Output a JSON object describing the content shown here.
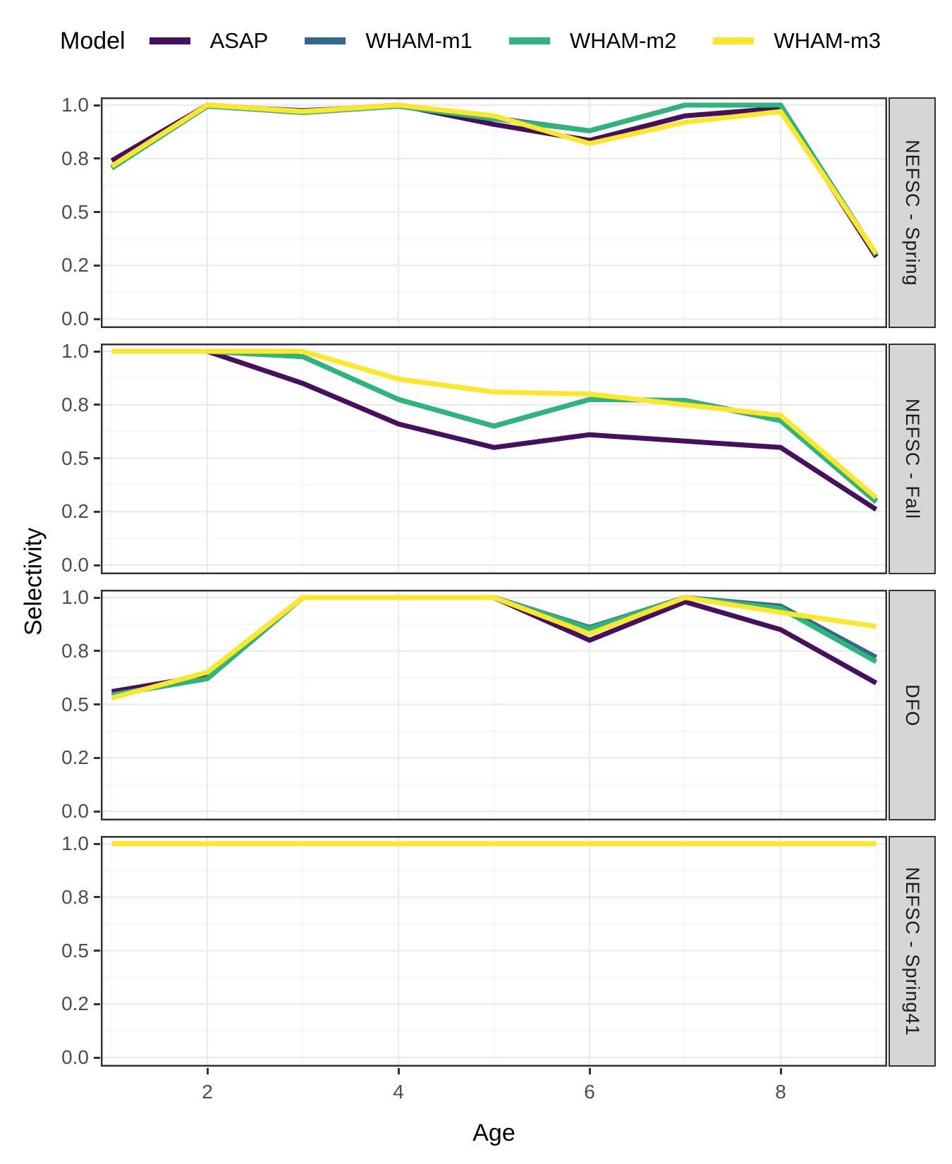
{
  "legend": {
    "title": "Model",
    "items": [
      {
        "label": "ASAP",
        "color": "#46105E"
      },
      {
        "label": "WHAM-m1",
        "color": "#31688E"
      },
      {
        "label": "WHAM-m2",
        "color": "#2FB47C"
      },
      {
        "label": "WHAM-m3",
        "color": "#FDE72A"
      }
    ]
  },
  "axes": {
    "x_label": "Age",
    "y_label": "Selectivity"
  },
  "chart_data": {
    "type": "line",
    "title": "",
    "xlabel": "Age",
    "ylabel": "Selectivity",
    "x": [
      1,
      2,
      3,
      4,
      5,
      6,
      7,
      8,
      9
    ],
    "xlim": [
      1,
      9
    ],
    "ylim": [
      0,
      1
    ],
    "x_ticks": [
      {
        "label": "2",
        "value": 2
      },
      {
        "label": "4",
        "value": 4
      },
      {
        "label": "6",
        "value": 6
      },
      {
        "label": "8",
        "value": 8
      }
    ],
    "y_ticks": [
      {
        "label": "1.0",
        "value": 1.0
      },
      {
        "label": "0.8",
        "value": 0.75
      },
      {
        "label": "0.5",
        "value": 0.5
      },
      {
        "label": "0.2",
        "value": 0.25
      },
      {
        "label": "0.0",
        "value": 0.0
      }
    ],
    "grid": "major and minor light-gray gridlines on white, dark panel border",
    "legend_position": "top",
    "facets": [
      {
        "label": "NEFSC - Spring",
        "series": [
          {
            "name": "ASAP",
            "values": [
              0.74,
              1.0,
              0.97,
              1.0,
              0.91,
              0.835,
              0.95,
              0.985,
              0.29
            ]
          },
          {
            "name": "WHAM-m1",
            "values": [
              0.71,
              0.995,
              0.975,
              0.995,
              0.94,
              0.88,
              1.0,
              1.0,
              0.3
            ]
          },
          {
            "name": "WHAM-m2",
            "values": [
              0.705,
              0.995,
              0.965,
              0.995,
              0.935,
              0.88,
              1.0,
              1.0,
              0.3
            ]
          },
          {
            "name": "WHAM-m3",
            "values": [
              0.715,
              1.0,
              0.97,
              1.0,
              0.95,
              0.82,
              0.92,
              0.97,
              0.305
            ]
          }
        ]
      },
      {
        "label": "NEFSC - Fall",
        "series": [
          {
            "name": "ASAP",
            "values": [
              1.0,
              1.0,
              0.85,
              0.66,
              0.55,
              0.61,
              0.58,
              0.55,
              0.26
            ]
          },
          {
            "name": "WHAM-m1",
            "values": [
              1.0,
              1.0,
              0.975,
              0.775,
              0.65,
              0.775,
              0.77,
              0.68,
              0.3
            ]
          },
          {
            "name": "WHAM-m2",
            "values": [
              1.0,
              1.0,
              0.975,
              0.775,
              0.65,
              0.775,
              0.77,
              0.675,
              0.295
            ]
          },
          {
            "name": "WHAM-m3",
            "values": [
              1.0,
              1.0,
              1.0,
              0.87,
              0.81,
              0.8,
              0.75,
              0.7,
              0.315
            ]
          }
        ]
      },
      {
        "label": "DFO",
        "series": [
          {
            "name": "ASAP",
            "values": [
              0.56,
              0.635,
              1.0,
              1.0,
              1.0,
              0.8,
              0.98,
              0.85,
              0.6
            ]
          },
          {
            "name": "WHAM-m1",
            "values": [
              0.545,
              0.62,
              1.0,
              1.0,
              1.0,
              0.86,
              1.0,
              0.96,
              0.72
            ]
          },
          {
            "name": "WHAM-m2",
            "values": [
              0.545,
              0.62,
              1.0,
              1.0,
              1.0,
              0.855,
              1.0,
              0.95,
              0.7
            ]
          },
          {
            "name": "WHAM-m3",
            "values": [
              0.53,
              0.65,
              1.0,
              1.0,
              1.0,
              0.83,
              1.0,
              0.93,
              0.865
            ]
          }
        ]
      },
      {
        "label": "NEFSC - Spring41",
        "series": [
          {
            "name": "ASAP",
            "values": [
              1.0,
              1.0,
              1.0,
              1.0,
              1.0,
              1.0,
              1.0,
              1.0,
              1.0
            ]
          },
          {
            "name": "WHAM-m1",
            "values": [
              1.0,
              1.0,
              1.0,
              1.0,
              1.0,
              1.0,
              1.0,
              1.0,
              1.0
            ]
          },
          {
            "name": "WHAM-m2",
            "values": [
              1.0,
              1.0,
              1.0,
              1.0,
              1.0,
              1.0,
              1.0,
              1.0,
              1.0
            ]
          },
          {
            "name": "WHAM-m3",
            "values": [
              1.0,
              1.0,
              1.0,
              1.0,
              1.0,
              1.0,
              1.0,
              1.0,
              1.0
            ]
          }
        ]
      }
    ]
  },
  "style": {
    "line_width": 7,
    "panel_border_color": "#333333",
    "grid_major_color": "#EBEBEB",
    "grid_minor_color": "#F4F4F4",
    "strip_bg": "#D6D6D6",
    "tick_text_color": "#4D4D4D",
    "axis_title_color": "#000000"
  }
}
